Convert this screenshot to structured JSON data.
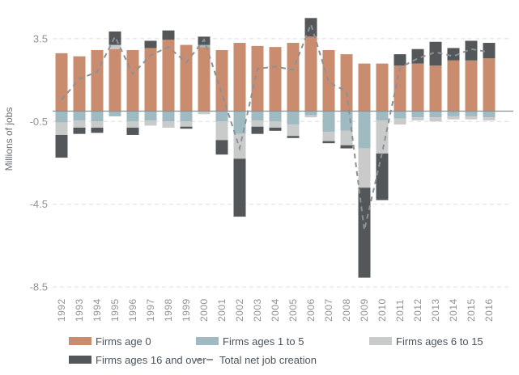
{
  "axis": {
    "y_label": "Millions of jobs",
    "y_ticks": [
      {
        "label": "3.5",
        "value": 3.5
      },
      {
        "label": "-0.5",
        "value": -0.5
      },
      {
        "label": "-4.5",
        "value": -4.5
      },
      {
        "label": "-8.5",
        "value": -8.5
      }
    ]
  },
  "legend": {
    "items": [
      {
        "label": "Firms age 0",
        "series": 0,
        "marker": "box"
      },
      {
        "label": "Firms ages 1 to 5",
        "series": 1,
        "marker": "box"
      },
      {
        "label": "Firms ages 6 to 15",
        "series": 2,
        "marker": "box"
      },
      {
        "label": "Firms ages 16 and over",
        "series": 3,
        "marker": "box"
      },
      {
        "label": "Total net job creation",
        "series": 4,
        "marker": "dashes"
      }
    ]
  },
  "colors": {
    "grid": "#dcdddd",
    "zero_line": "#8b8e90",
    "tick_text": "#8f9499",
    "legend_text": "#4a545e",
    "background": "#ffffff"
  },
  "chart_data": {
    "type": "bar",
    "stacked": true,
    "title": "",
    "xlabel": "",
    "ylabel": "Millions of jobs",
    "ylim": [
      -8.5,
      4.6
    ],
    "grid": "dashed horizontal at y ticks, solid line at 0",
    "legend_position": "bottom",
    "categories": [
      "1992",
      "1993",
      "1994",
      "1995",
      "1996",
      "1997",
      "1998",
      "1999",
      "2000",
      "2001",
      "2002",
      "2003",
      "2004",
      "2005",
      "2006",
      "2007",
      "2008",
      "2009",
      "2010",
      "2011",
      "2012",
      "2013",
      "2014",
      "2015",
      "2016"
    ],
    "series": [
      {
        "name": "Firms age 0",
        "type": "bar",
        "color": "#ca8c6f",
        "values": [
          2.8,
          2.65,
          2.95,
          3.0,
          2.95,
          3.05,
          3.45,
          3.2,
          3.1,
          2.95,
          3.3,
          3.15,
          3.1,
          3.3,
          3.6,
          2.95,
          2.75,
          2.3,
          2.3,
          2.2,
          2.3,
          2.2,
          2.45,
          2.45,
          2.55
        ]
      },
      {
        "name": "Firms ages 1 to 5",
        "type": "bar",
        "color": "#9fbac1",
        "values": [
          -0.55,
          -0.45,
          -0.5,
          -0.25,
          -0.5,
          -0.45,
          -0.5,
          -0.5,
          0.1,
          -0.5,
          -1.1,
          -0.45,
          -0.5,
          -0.65,
          -0.2,
          -1.0,
          -0.95,
          -1.8,
          -0.45,
          -0.35,
          -0.3,
          -0.3,
          -0.25,
          -0.25,
          -0.3
        ]
      },
      {
        "name": "Firms ages 6 to 15",
        "type": "bar",
        "color": "#c9cbcb",
        "values": [
          -0.6,
          -0.35,
          -0.3,
          0.2,
          -0.3,
          -0.25,
          -0.3,
          -0.25,
          -0.15,
          -0.9,
          -1.2,
          -0.3,
          -0.3,
          -0.55,
          -0.1,
          -0.45,
          -0.7,
          -1.9,
          -1.6,
          -0.3,
          -0.15,
          -0.2,
          -0.15,
          -0.15,
          -0.15
        ]
      },
      {
        "name": "Firms ages 16 and over",
        "type": "bar",
        "color": "#53575a",
        "values": [
          -1.1,
          -0.3,
          -0.25,
          0.65,
          -0.35,
          0.35,
          0.45,
          -0.1,
          0.4,
          -0.7,
          -2.8,
          -0.35,
          -0.15,
          -0.1,
          0.9,
          -0.1,
          -0.15,
          -4.35,
          -2.25,
          0.55,
          0.7,
          1.15,
          0.6,
          0.95,
          0.75
        ]
      },
      {
        "name": "Total net job creation",
        "type": "line",
        "dashed": true,
        "color": "#8c9196",
        "values": [
          0.55,
          1.55,
          1.9,
          3.6,
          1.8,
          2.7,
          3.1,
          2.35,
          3.45,
          0.85,
          -1.8,
          2.05,
          2.15,
          2.0,
          4.2,
          1.4,
          0.95,
          -5.75,
          -2.0,
          2.1,
          2.55,
          2.85,
          2.65,
          3.0,
          2.85
        ]
      }
    ]
  }
}
